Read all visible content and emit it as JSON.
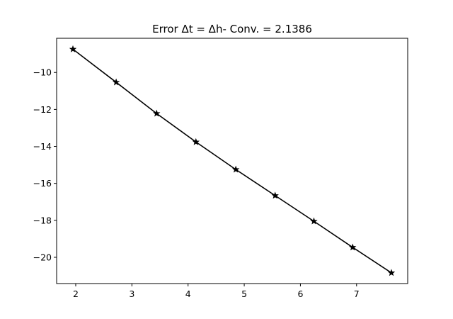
{
  "chart_data": {
    "type": "line",
    "title": "Error Δt = Δh- Conv. = 2.1386",
    "xlabel": "",
    "ylabel": "",
    "xlim": [
      1.66,
      7.91
    ],
    "ylim": [
      -21.42,
      -8.15
    ],
    "xticks": [
      2,
      3,
      4,
      5,
      6,
      7
    ],
    "yticks": [
      -20,
      -18,
      -16,
      -14,
      -12,
      -10
    ],
    "xtick_labels": [
      "2",
      "3",
      "4",
      "5",
      "6",
      "7"
    ],
    "ytick_labels": [
      "−20",
      "−18",
      "−16",
      "−14",
      "−12",
      "−10"
    ],
    "grid": false,
    "legend": "none",
    "series": [
      {
        "color": "#000000",
        "marker": "star",
        "x": [
          1.95,
          2.72,
          3.44,
          4.14,
          4.85,
          5.55,
          6.24,
          6.93,
          7.62
        ],
        "y": [
          -8.74,
          -10.53,
          -12.22,
          -13.76,
          -15.25,
          -16.66,
          -18.05,
          -19.46,
          -20.84
        ]
      }
    ]
  }
}
